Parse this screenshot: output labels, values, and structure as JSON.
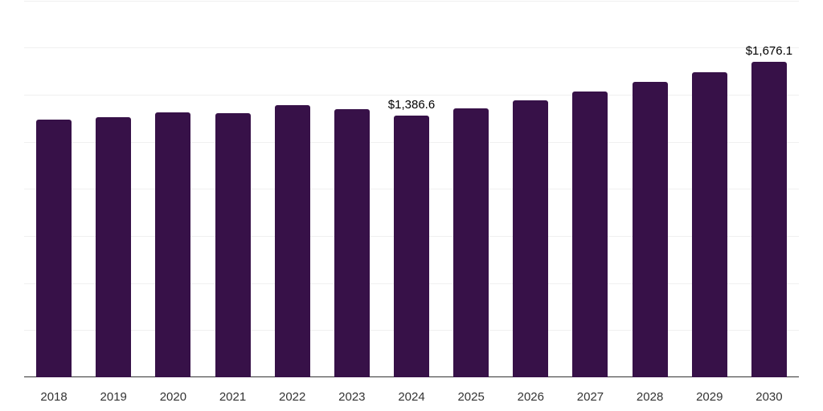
{
  "chart_data": {
    "type": "bar",
    "title": "",
    "xlabel": "",
    "ylabel": "",
    "categories": [
      "2018",
      "2019",
      "2020",
      "2021",
      "2022",
      "2023",
      "2024",
      "2025",
      "2026",
      "2027",
      "2028",
      "2029",
      "2030"
    ],
    "values": [
      1366,
      1379,
      1404,
      1400,
      1443,
      1421,
      1386.6,
      1426,
      1468,
      1515,
      1566,
      1617,
      1676.1
    ],
    "data_labels": [
      {
        "category": "2024",
        "text": "$1,386.6"
      },
      {
        "category": "2030",
        "text": "$1,676.1"
      }
    ],
    "ylim": [
      0,
      2000
    ],
    "grid": true,
    "gridline_step": 250,
    "y_tick_labels_visible": false,
    "legend": null,
    "bar_color": "#371148"
  }
}
